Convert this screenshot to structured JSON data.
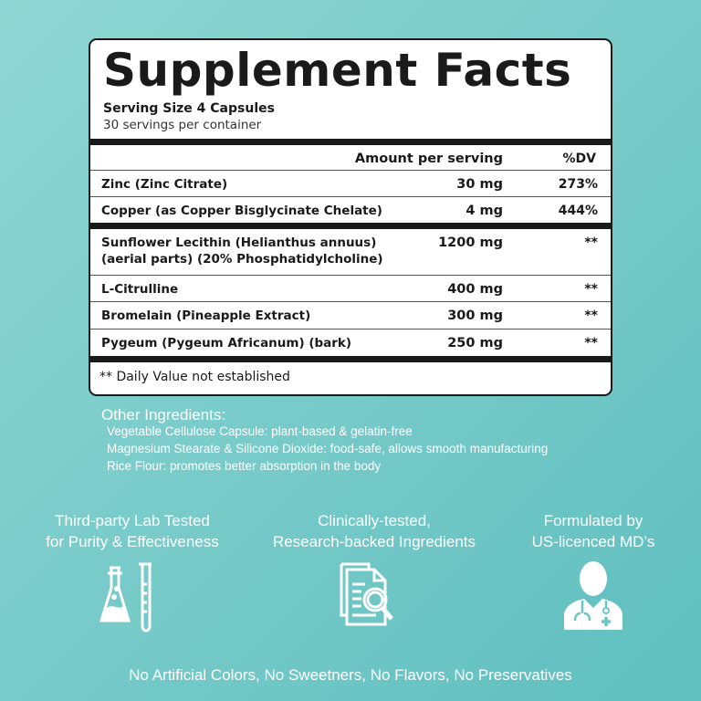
{
  "title": "Supplement Facts",
  "serving_size": "Serving Size  4 Capsules",
  "servings_per_container": "30 servings per container",
  "header": {
    "amount": "Amount per serving",
    "dv": "%DV"
  },
  "rows": [
    {
      "name": "Zinc (Zinc Citrate)",
      "amount": "30 mg",
      "dv": "273%"
    },
    {
      "name": "Copper (as Copper Bisglycinate Chelate)",
      "amount": "4 mg",
      "dv": "444%"
    },
    {
      "name": "Sunflower Lecithin (Helianthus annuus)",
      "name2": "(aerial parts) (20% Phosphatidylcholine)",
      "amount": "1200 mg",
      "dv": "**"
    },
    {
      "name": "L-Citrulline",
      "amount": "400 mg",
      "dv": "**"
    },
    {
      "name": "Bromelain (Pineapple Extract)",
      "amount": "300 mg",
      "dv": "**"
    },
    {
      "name": "Pygeum (Pygeum Africanum) (bark)",
      "amount": "250 mg",
      "dv": "**"
    }
  ],
  "footnote": "** Daily Value not established",
  "other_ingredients": {
    "title": "Other Ingredients:",
    "items": [
      "Vegetable Cellulose Capsule: plant-based & gelatin-free",
      "Magnesium Stearate & Silicone Dioxide: food-safe, allows smooth manufacturing",
      "Rice Flour: promotes better absorption in the body"
    ]
  },
  "features": [
    {
      "line1": "Third-party Lab Tested",
      "line2": "for Purity & Effectiveness",
      "icon": "lab-flask-icon"
    },
    {
      "line1": "Clinically-tested,",
      "line2": "Research-backed Ingredients",
      "icon": "document-search-icon"
    },
    {
      "line1": "Formulated by",
      "line2": "US-licenced MD’s",
      "icon": "doctor-icon"
    }
  ],
  "bottom_text": "No Artificial Colors, No Sweetners, No Flavors, No Preservatives"
}
